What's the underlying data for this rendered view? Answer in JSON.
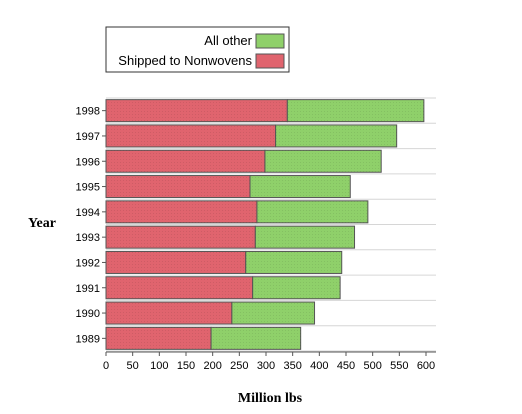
{
  "chart_data": {
    "type": "bar",
    "orientation": "horizontal",
    "stacked": true,
    "categories": [
      "1998",
      "1997",
      "1996",
      "1995",
      "1994",
      "1993",
      "1992",
      "1991",
      "1990",
      "1989"
    ],
    "series": [
      {
        "name": "Shipped to Nonwovens",
        "color": "#e0646e",
        "values": [
          340,
          318,
          298,
          270,
          283,
          280,
          262,
          275,
          236,
          197
        ]
      },
      {
        "name": "All other",
        "color": "#8fd06a",
        "values": [
          256,
          227,
          218,
          188,
          208,
          186,
          180,
          164,
          155,
          168
        ]
      }
    ],
    "legend_order": [
      "All other",
      "Shipped to Nonwovens"
    ],
    "xlabel": "Million lbs",
    "ylabel": "Year",
    "xlim": [
      0,
      600
    ],
    "xticks": [
      0,
      50,
      100,
      150,
      200,
      250,
      300,
      350,
      400,
      450,
      500,
      550,
      600
    ],
    "grid": "horizontal lines",
    "legend_position": "top-left"
  }
}
